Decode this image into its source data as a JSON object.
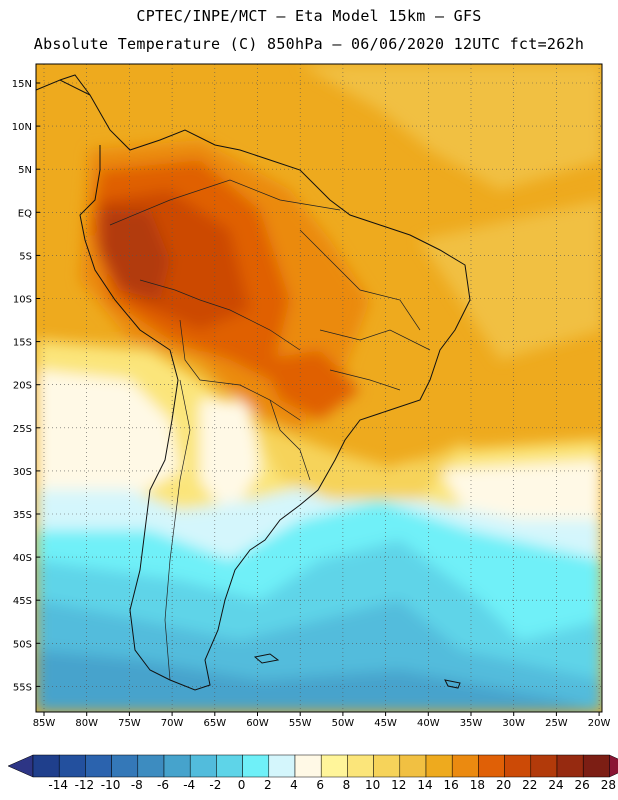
{
  "header": {
    "line1": "CPTEC/INPE/MCT –  Eta Model 15km – GFS",
    "line2": "Absolute Temperature (C) 850hPa – 06/06/2020 12UTC fct=262h"
  },
  "axes": {
    "lat_labels": [
      "15N",
      "10N",
      "5N",
      "EQ",
      "5S",
      "10S",
      "15S",
      "20S",
      "25S",
      "30S",
      "35S",
      "40S",
      "45S",
      "50S",
      "55S"
    ],
    "lon_labels": [
      "85W",
      "80W",
      "75W",
      "70W",
      "65W",
      "60W",
      "55W",
      "50W",
      "45W",
      "40W",
      "35W",
      "30W",
      "25W",
      "20W"
    ]
  },
  "colorbar": {
    "labels": [
      "-14",
      "-12",
      "-10",
      "-8",
      "-6",
      "-4",
      "-2",
      "0",
      "2",
      "4",
      "6",
      "8",
      "10",
      "12",
      "14",
      "16",
      "18",
      "20",
      "22",
      "24",
      "26",
      "28"
    ],
    "colors": [
      "#1f3f8c",
      "#23509e",
      "#2b63ae",
      "#3478b8",
      "#3d8cc0",
      "#46a3cc",
      "#52bcdc",
      "#5ed4e8",
      "#6ff0f8",
      "#d4f6fc",
      "#fff9e6",
      "#fff59a",
      "#fbe57a",
      "#f6d35a",
      "#f1c042",
      "#eeaa1e",
      "#eb8a10",
      "#e06006",
      "#cc4a06",
      "#b23a0a",
      "#962a10",
      "#7c1e14"
    ],
    "under_color": "#2d3585",
    "over_color": "#8a1433"
  }
}
